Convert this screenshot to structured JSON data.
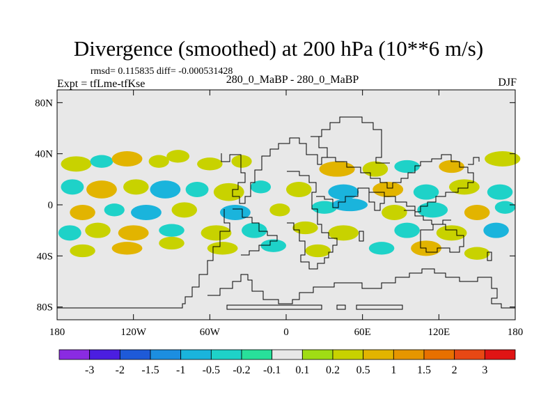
{
  "chart_data": {
    "type": "heatmap",
    "title": "Divergence (smoothed) at 200 hPa (10**6 m/s)",
    "stats_label": "rmsd= 0.115835 diff= -0.000531428",
    "left_label": "Expt = tfLme-tfKse",
    "center_label": "280_0_MaBP - 280_0_MaBP",
    "right_label": "DJF",
    "x_ticks": [
      "180",
      "120W",
      "60W",
      "0",
      "60E",
      "120E",
      "180"
    ],
    "x_tick_values": [
      -180,
      -120,
      -60,
      0,
      60,
      120,
      180
    ],
    "y_ticks": [
      "80N",
      "40N",
      "0",
      "40S",
      "80S"
    ],
    "y_tick_values": [
      80,
      40,
      0,
      -40,
      -80
    ],
    "xlim": [
      -180,
      180
    ],
    "ylim": [
      -90,
      90
    ],
    "colorbar": {
      "colors": [
        "#8a2be2",
        "#4b1ee0",
        "#1e5ad8",
        "#1c8ee0",
        "#1ab4dc",
        "#1ed2c8",
        "#28e09a",
        "#e8e8e8",
        "#a0dc14",
        "#c8d200",
        "#e2b400",
        "#e69600",
        "#e87000",
        "#e84814",
        "#e01414"
      ],
      "labels": [
        "-3",
        "-2",
        "-1.5",
        "-1",
        "-0.5",
        "-0.2",
        "-0.1",
        "0.1",
        "0.2",
        "0.5",
        "1",
        "1.5",
        "2",
        "3"
      ]
    },
    "blobs": [
      {
        "lon": -165,
        "lat": 32,
        "rx": 12,
        "ry": 6,
        "level": "0.2"
      },
      {
        "lon": -145,
        "lat": 34,
        "rx": 9,
        "ry": 5,
        "level": "-0.2"
      },
      {
        "lon": -125,
        "lat": 36,
        "rx": 12,
        "ry": 6,
        "level": "0.5"
      },
      {
        "lon": -100,
        "lat": 34,
        "rx": 8,
        "ry": 5,
        "level": "0.2"
      },
      {
        "lon": -85,
        "lat": 38,
        "rx": 9,
        "ry": 5,
        "level": "0.2"
      },
      {
        "lon": -60,
        "lat": 32,
        "rx": 10,
        "ry": 5,
        "level": "0.2"
      },
      {
        "lon": -35,
        "lat": 34,
        "rx": 8,
        "ry": 5,
        "level": "0.2"
      },
      {
        "lon": 40,
        "lat": 28,
        "rx": 14,
        "ry": 6,
        "level": "0.5"
      },
      {
        "lon": 70,
        "lat": 28,
        "rx": 10,
        "ry": 6,
        "level": "0.2"
      },
      {
        "lon": 95,
        "lat": 30,
        "rx": 10,
        "ry": 5,
        "level": "-0.2"
      },
      {
        "lon": 130,
        "lat": 30,
        "rx": 10,
        "ry": 5,
        "level": "0.5"
      },
      {
        "lon": 170,
        "lat": 36,
        "rx": 14,
        "ry": 6,
        "level": "0.2"
      },
      {
        "lon": -168,
        "lat": 14,
        "rx": 9,
        "ry": 6,
        "level": "-0.2"
      },
      {
        "lon": -145,
        "lat": 12,
        "rx": 12,
        "ry": 7,
        "level": "0.5"
      },
      {
        "lon": -118,
        "lat": 14,
        "rx": 10,
        "ry": 6,
        "level": "0.2"
      },
      {
        "lon": -95,
        "lat": 12,
        "rx": 12,
        "ry": 7,
        "level": "-0.5"
      },
      {
        "lon": -70,
        "lat": 12,
        "rx": 9,
        "ry": 6,
        "level": "-0.2"
      },
      {
        "lon": -45,
        "lat": 10,
        "rx": 12,
        "ry": 7,
        "level": "0.2"
      },
      {
        "lon": -20,
        "lat": 14,
        "rx": 8,
        "ry": 5,
        "level": "-0.2"
      },
      {
        "lon": 10,
        "lat": 12,
        "rx": 10,
        "ry": 6,
        "level": "0.2"
      },
      {
        "lon": 45,
        "lat": 10,
        "rx": 12,
        "ry": 6,
        "level": "-0.5"
      },
      {
        "lon": 80,
        "lat": 12,
        "rx": 12,
        "ry": 6,
        "level": "0.5"
      },
      {
        "lon": 110,
        "lat": 10,
        "rx": 10,
        "ry": 6,
        "level": "-0.2"
      },
      {
        "lon": 140,
        "lat": 14,
        "rx": 12,
        "ry": 6,
        "level": "0.2"
      },
      {
        "lon": 168,
        "lat": 10,
        "rx": 10,
        "ry": 6,
        "level": "-0.2"
      },
      {
        "lon": -160,
        "lat": -6,
        "rx": 10,
        "ry": 6,
        "level": "0.5"
      },
      {
        "lon": -135,
        "lat": -4,
        "rx": 8,
        "ry": 5,
        "level": "-0.2"
      },
      {
        "lon": -110,
        "lat": -6,
        "rx": 12,
        "ry": 6,
        "level": "-0.5"
      },
      {
        "lon": -80,
        "lat": -4,
        "rx": 10,
        "ry": 6,
        "level": "0.2"
      },
      {
        "lon": -40,
        "lat": -6,
        "rx": 12,
        "ry": 6,
        "level": "-0.5"
      },
      {
        "lon": -5,
        "lat": -4,
        "rx": 8,
        "ry": 5,
        "level": "0.2"
      },
      {
        "lon": 30,
        "lat": -2,
        "rx": 10,
        "ry": 5,
        "level": "-0.2"
      },
      {
        "lon": 50,
        "lat": 0,
        "rx": 14,
        "ry": 5,
        "level": "-0.5"
      },
      {
        "lon": 85,
        "lat": -6,
        "rx": 10,
        "ry": 6,
        "level": "0.2"
      },
      {
        "lon": 115,
        "lat": -4,
        "rx": 12,
        "ry": 6,
        "level": "-0.2"
      },
      {
        "lon": 150,
        "lat": -6,
        "rx": 10,
        "ry": 6,
        "level": "0.5"
      },
      {
        "lon": 172,
        "lat": -2,
        "rx": 8,
        "ry": 5,
        "level": "-0.2"
      },
      {
        "lon": -170,
        "lat": -22,
        "rx": 9,
        "ry": 6,
        "level": "-0.2"
      },
      {
        "lon": -148,
        "lat": -20,
        "rx": 10,
        "ry": 6,
        "level": "0.2"
      },
      {
        "lon": -120,
        "lat": -22,
        "rx": 12,
        "ry": 6,
        "level": "0.5"
      },
      {
        "lon": -90,
        "lat": -20,
        "rx": 10,
        "ry": 5,
        "level": "-0.2"
      },
      {
        "lon": -55,
        "lat": -22,
        "rx": 12,
        "ry": 6,
        "level": "0.2"
      },
      {
        "lon": -25,
        "lat": -20,
        "rx": 10,
        "ry": 6,
        "level": "-0.2"
      },
      {
        "lon": 15,
        "lat": -18,
        "rx": 10,
        "ry": 5,
        "level": "0.2"
      },
      {
        "lon": 45,
        "lat": -22,
        "rx": 12,
        "ry": 6,
        "level": "0.2"
      },
      {
        "lon": 95,
        "lat": -20,
        "rx": 10,
        "ry": 6,
        "level": "-0.2"
      },
      {
        "lon": 130,
        "lat": -22,
        "rx": 12,
        "ry": 6,
        "level": "0.2"
      },
      {
        "lon": 165,
        "lat": -20,
        "rx": 10,
        "ry": 6,
        "level": "-0.5"
      },
      {
        "lon": -160,
        "lat": -36,
        "rx": 10,
        "ry": 5,
        "level": "0.2"
      },
      {
        "lon": -125,
        "lat": -34,
        "rx": 12,
        "ry": 5,
        "level": "0.5"
      },
      {
        "lon": -90,
        "lat": -30,
        "rx": 10,
        "ry": 5,
        "level": "0.2"
      },
      {
        "lon": -50,
        "lat": -34,
        "rx": 12,
        "ry": 5,
        "level": "0.2"
      },
      {
        "lon": -10,
        "lat": -32,
        "rx": 10,
        "ry": 5,
        "level": "-0.2"
      },
      {
        "lon": 25,
        "lat": -36,
        "rx": 10,
        "ry": 5,
        "level": "0.2"
      },
      {
        "lon": 75,
        "lat": -34,
        "rx": 10,
        "ry": 5,
        "level": "-0.2"
      },
      {
        "lon": 110,
        "lat": -34,
        "rx": 12,
        "ry": 6,
        "level": "0.5"
      },
      {
        "lon": 150,
        "lat": -38,
        "rx": 10,
        "ry": 5,
        "level": "0.2"
      }
    ]
  }
}
